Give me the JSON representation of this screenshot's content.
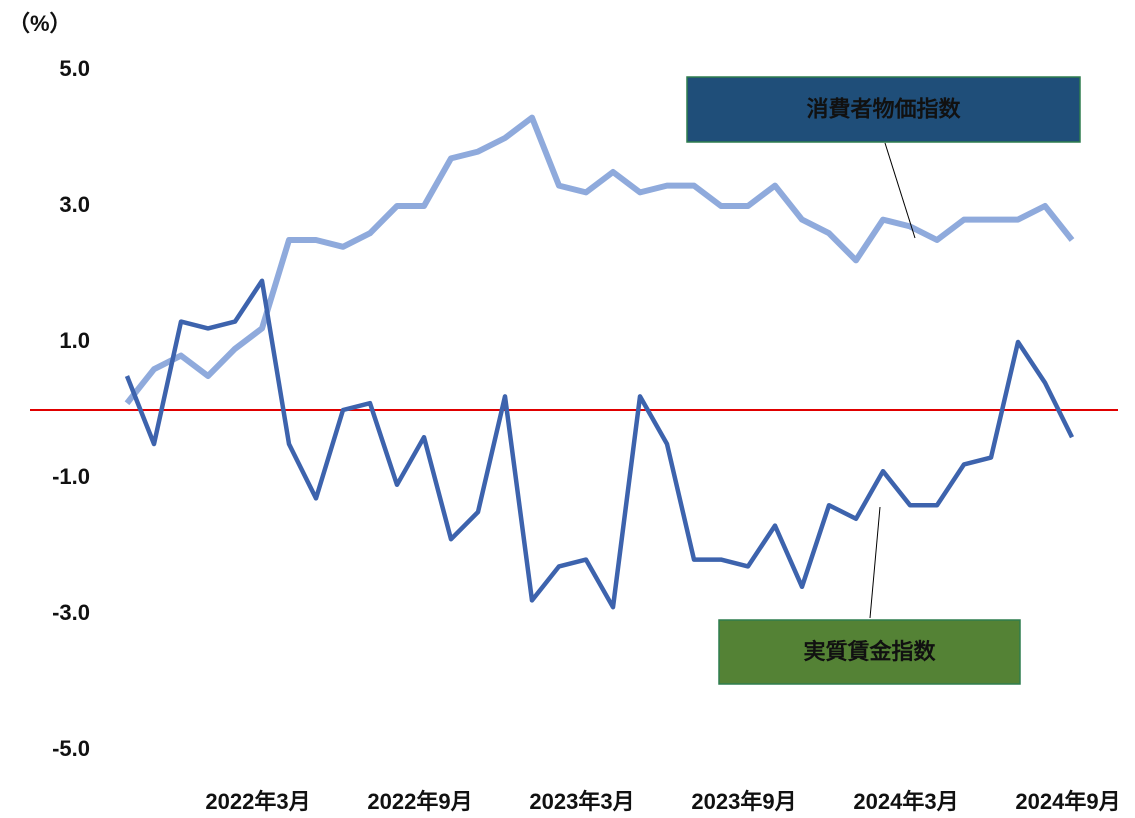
{
  "chart_data": {
    "type": "line",
    "y_unit_label": "（%）",
    "categories": [
      null,
      null,
      null,
      null,
      null,
      "2022年3月",
      null,
      null,
      null,
      null,
      null,
      "2022年9月",
      null,
      null,
      null,
      null,
      null,
      "2023年3月",
      null,
      null,
      null,
      null,
      null,
      "2023年9月",
      null,
      null,
      null,
      null,
      null,
      "2024年3月",
      null,
      null,
      null,
      null,
      null,
      "2024年9月"
    ],
    "series": [
      {
        "name": "消費者物価指数",
        "color": "#8faadc",
        "label_box_color": "#1f4e79",
        "values": [
          0.1,
          0.6,
          0.8,
          0.5,
          0.9,
          1.2,
          2.5,
          2.5,
          2.4,
          2.6,
          3.0,
          3.0,
          3.7,
          3.8,
          4.0,
          4.3,
          3.3,
          3.2,
          3.5,
          3.2,
          3.3,
          3.3,
          3.0,
          3.0,
          3.3,
          2.8,
          2.6,
          2.2,
          2.8,
          2.7,
          2.5,
          2.8,
          2.8,
          2.8,
          3.0,
          2.5
        ]
      },
      {
        "name": "実質賃金指数",
        "color": "#3d63ad",
        "label_box_color": "#548235",
        "values": [
          0.5,
          -0.5,
          1.3,
          1.2,
          1.3,
          1.9,
          -0.5,
          -1.3,
          0.0,
          0.1,
          -1.1,
          -0.4,
          -1.9,
          -1.5,
          0.2,
          -2.8,
          -2.3,
          -2.2,
          -2.9,
          0.2,
          -0.5,
          -2.2,
          -2.2,
          -2.3,
          -1.7,
          -2.6,
          -1.4,
          -1.6,
          -0.9,
          -1.4,
          -1.4,
          -0.8,
          -0.7,
          1.0,
          0.4,
          -0.4
        ]
      }
    ],
    "ylim": [
      -5,
      5
    ],
    "yticks": [
      {
        "value": 5,
        "label": "5.0"
      },
      {
        "value": 3,
        "label": "3.0"
      },
      {
        "value": 1,
        "label": "1.0"
      },
      {
        "value": -1,
        "label": "-1.0"
      },
      {
        "value": -3,
        "label": "-3.0"
      },
      {
        "value": -5,
        "label": "-5.0"
      }
    ],
    "negative_tick_color": "#e00000",
    "zero_line_color": "#e00000"
  }
}
